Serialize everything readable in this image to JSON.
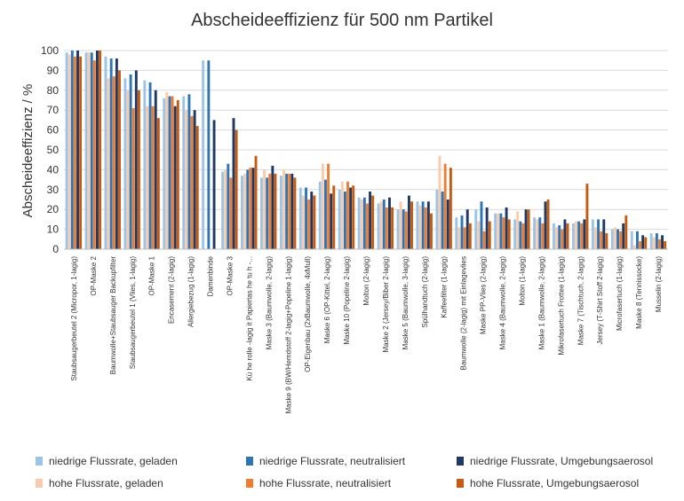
{
  "chart_data": {
    "type": "bar",
    "title": "Abscheideeffizienz für 500 nm Partikel",
    "xlabel": "",
    "ylabel": "Abscheideeffizienz / %",
    "ylim": [
      0,
      100
    ],
    "yticks": [
      0,
      10,
      20,
      30,
      40,
      50,
      60,
      70,
      80,
      90,
      100
    ],
    "grid": true,
    "legend_position": "bottom",
    "categories": [
      "Staubsaugerbeutel 2 (Micropor, 1-lagig)",
      "OP-Maske 2",
      "Baumwolle+Staubsauger Backupfilter",
      "Staubsaugerbeutel 1 (Vlies, 1-lagig)",
      "OP-Maske 1",
      "Encasement (2-lagig)",
      "Allergiebezug (1-lagig)",
      "Damenbinde",
      "OP-Maske 3",
      "Kü he rolle -lagig  it Papiertas he tu h -...",
      "Maske 3 (Baumwolle, 2-lagig)",
      "Maske 9 (BW/Hemdstoff 2-lagig+Popeline 1-lagig)",
      "OP-Eigenbau (2xBaumwolle, 4xMull)",
      "Maske 6 (OP-Kittel, 2-lagig)",
      "Maske 10 (Popeline 2-lagig)",
      "Molton (2-lagig)",
      "Maske 2 (Jersey/Biber 2-lagig)",
      "Maske 5 (Baumwolle, 3-lagig)",
      "Spülhandtuch (2-lagig)",
      "Kaffeefilter (1-lagig)",
      "Baumwolle (2-lagig) mit Einlagevlies",
      "Maske PP-Vlies (2-lagig)",
      "Maske 4 (Baumwolle, 2-lagig)",
      "Molton (1-lagig)",
      "Maske 1 (Baumwolle, 2-lagig)",
      "Mikrofasertuch Frottee (1-lagig)",
      "Maske 7 (Tischtuch, 2-lagig)",
      "Jersey (T-Shirt Stoff 2-lagig)",
      "Microfasertuch (1-lagig)",
      "Maske 8 (Tennissocke)",
      "Musselin (2-lagig)"
    ],
    "series": [
      {
        "name": "niedrige Flussrate, geladen",
        "color": "#9dc3e6",
        "values": [
          99,
          99,
          97,
          86,
          85,
          76,
          77,
          95,
          39,
          37,
          36,
          37,
          31,
          34,
          30,
          26,
          23,
          20,
          24,
          30,
          16,
          20,
          18,
          15,
          16,
          13,
          13,
          15,
          10,
          9,
          8
        ]
      },
      {
        "name": "hohe Flussrate, geladen",
        "color": "#f8cbad",
        "values": [
          98,
          99,
          86,
          80,
          72,
          79,
          70,
          0,
          40,
          38,
          40,
          40,
          27,
          43,
          34,
          25,
          24,
          24,
          22,
          47,
          11,
          14,
          18,
          19,
          15,
          11,
          14,
          11,
          11,
          2,
          6
        ]
      },
      {
        "name": "niedrige Flussrate, neutralisiert",
        "color": "#2e75b6",
        "values": [
          100,
          99,
          96,
          88,
          84,
          77,
          78,
          95,
          43,
          40,
          36,
          38,
          31,
          35,
          29,
          26,
          25,
          20,
          24,
          29,
          17,
          24,
          18,
          14,
          16,
          12,
          14,
          15,
          10,
          9,
          8
        ]
      },
      {
        "name": "hohe Flussrate, neutralisiert",
        "color": "#ed7d31",
        "values": [
          97,
          95,
          87,
          71,
          72,
          77,
          67,
          0,
          36,
          41,
          38,
          38,
          25,
          43,
          34,
          23,
          21,
          19,
          21,
          43,
          11,
          9,
          16,
          13,
          13,
          10,
          13,
          9,
          9,
          4,
          5
        ]
      },
      {
        "name": "niedrige Flussrate, Umgebungsaerosol",
        "color": "#1f3864",
        "values": [
          100,
          100,
          96,
          90,
          80,
          72,
          70,
          65,
          66,
          41,
          42,
          38,
          29,
          28,
          31,
          29,
          26,
          27,
          24,
          25,
          20,
          21,
          21,
          20,
          24,
          15,
          15,
          15,
          13,
          7,
          7
        ]
      },
      {
        "name": "hohe Flussrate, Umgebungsaerosol",
        "color": "#c55a11",
        "values": [
          97,
          100,
          90,
          80,
          66,
          75,
          62,
          0,
          60,
          47,
          38,
          36,
          27,
          32,
          32,
          27,
          21,
          24,
          18,
          41,
          13,
          14,
          15,
          20,
          25,
          13,
          33,
          8,
          17,
          6,
          4
        ]
      }
    ]
  },
  "legend": {
    "items": [
      {
        "label": "niedrige Flussrate, geladen",
        "color": "#9dc3e6"
      },
      {
        "label": "niedrige Flussrate, neutralisiert",
        "color": "#2e75b6"
      },
      {
        "label": "niedrige Flussrate, Umgebungsaerosol",
        "color": "#1f3864"
      },
      {
        "label": "hohe Flussrate, geladen",
        "color": "#f8cbad"
      },
      {
        "label": "hohe Flussrate, neutralisiert",
        "color": "#ed7d31"
      },
      {
        "label": "hohe Flussrate, Umgebungsaerosol",
        "color": "#c55a11"
      }
    ]
  }
}
